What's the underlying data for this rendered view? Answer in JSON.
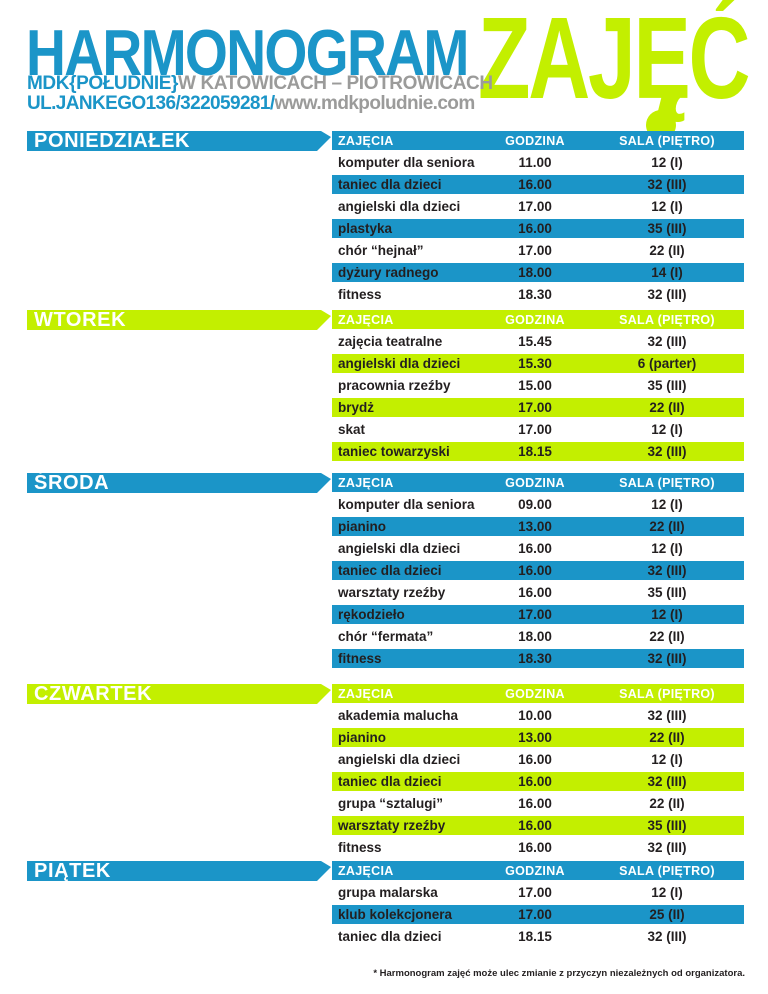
{
  "header": {
    "title_main": "HARMONOGRAM",
    "title_accent": "ZAJĘĆ",
    "subtitle_blue": "MDK{POŁUDNIE}",
    "subtitle_gray": "W KATOWICACH – PIOTROWICACH",
    "address_blue": "UL.JANKEGO136/322059281/",
    "address_gray": "www.mdkpoludnie.com"
  },
  "columns": {
    "activity": "ZAJĘCIA",
    "time": "GODZINA",
    "room": "SALA (PIĘTRO)"
  },
  "colors": {
    "blue": "#1b95c8",
    "green": "#c3ef00",
    "gray": "#9b9b9a",
    "ink": "#231f20"
  },
  "days": [
    {
      "name": "PONIEDZIAŁEK",
      "theme": "blue",
      "rows": [
        {
          "activity": "komputer dla seniora",
          "time": "11.00",
          "room": "12 (I)"
        },
        {
          "activity": "taniec dla dzieci",
          "time": "16.00",
          "room": "32 (III)"
        },
        {
          "activity": "angielski dla dzieci",
          "time": "17.00",
          "room": "12 (I)"
        },
        {
          "activity": "plastyka",
          "time": "16.00",
          "room": "35 (III)"
        },
        {
          "activity": "chór “hejnał”",
          "time": "17.00",
          "room": "22 (II)"
        },
        {
          "activity": "dyżury radnego",
          "time": "18.00",
          "room": "14 (I)"
        },
        {
          "activity": "fitness",
          "time": "18.30",
          "room": "32 (III)"
        }
      ]
    },
    {
      "name": "WTOREK",
      "theme": "green",
      "rows": [
        {
          "activity": "zajęcia teatralne",
          "time": "15.45",
          "room": "32 (III)"
        },
        {
          "activity": "angielski dla dzieci",
          "time": "15.30",
          "room": "6 (parter)"
        },
        {
          "activity": "pracownia rzeźby",
          "time": "15.00",
          "room": "35 (III)"
        },
        {
          "activity": "brydż",
          "time": "17.00",
          "room": "22 (II)"
        },
        {
          "activity": "skat",
          "time": "17.00",
          "room": "12 (I)"
        },
        {
          "activity": "taniec towarzyski",
          "time": "18.15",
          "room": "32 (III)"
        }
      ]
    },
    {
      "name": "ŚRODA",
      "theme": "blue",
      "rows": [
        {
          "activity": "komputer dla seniora",
          "time": "09.00",
          "room": "12 (I)"
        },
        {
          "activity": "pianino",
          "time": "13.00",
          "room": "22 (II)"
        },
        {
          "activity": "angielski dla dzieci",
          "time": "16.00",
          "room": "12 (I)"
        },
        {
          "activity": "taniec dla dzieci",
          "time": "16.00",
          "room": "32 (III)"
        },
        {
          "activity": "warsztaty rzeźby",
          "time": "16.00",
          "room": "35 (III)"
        },
        {
          "activity": "rękodzieło",
          "time": "17.00",
          "room": "12 (I)"
        },
        {
          "activity": "chór “fermata”",
          "time": "18.00",
          "room": "22 (II)"
        },
        {
          "activity": "fitness",
          "time": "18.30",
          "room": "32 (III)"
        }
      ]
    },
    {
      "name": "CZWARTEK",
      "theme": "green",
      "rows": [
        {
          "activity": "akademia malucha",
          "time": "10.00",
          "room": "32 (III)"
        },
        {
          "activity": "pianino",
          "time": "13.00",
          "room": "22 (II)"
        },
        {
          "activity": "angielski dla dzieci",
          "time": "16.00",
          "room": "12 (I)"
        },
        {
          "activity": "taniec dla dzieci",
          "time": "16.00",
          "room": "32 (III)"
        },
        {
          "activity": "grupa “sztalugi”",
          "time": "16.00",
          "room": "22 (II)"
        },
        {
          "activity": "warsztaty rzeźby",
          "time": "16.00",
          "room": "35 (III)"
        },
        {
          "activity": "fitness",
          "time": "16.00",
          "room": "32 (III)"
        }
      ]
    },
    {
      "name": "PIĄTEK",
      "theme": "blue",
      "rows": [
        {
          "activity": "grupa malarska",
          "time": "17.00",
          "room": "12 (I)"
        },
        {
          "activity": "klub kolekcjonera",
          "time": "17.00",
          "room": "25 (II)"
        },
        {
          "activity": "taniec dla dzieci",
          "time": "18.15",
          "room": "32 (III)"
        }
      ]
    }
  ],
  "footnote": "* Harmonogram zajęć może ulec zmianie z przyczyn niezależnych od organizatora."
}
